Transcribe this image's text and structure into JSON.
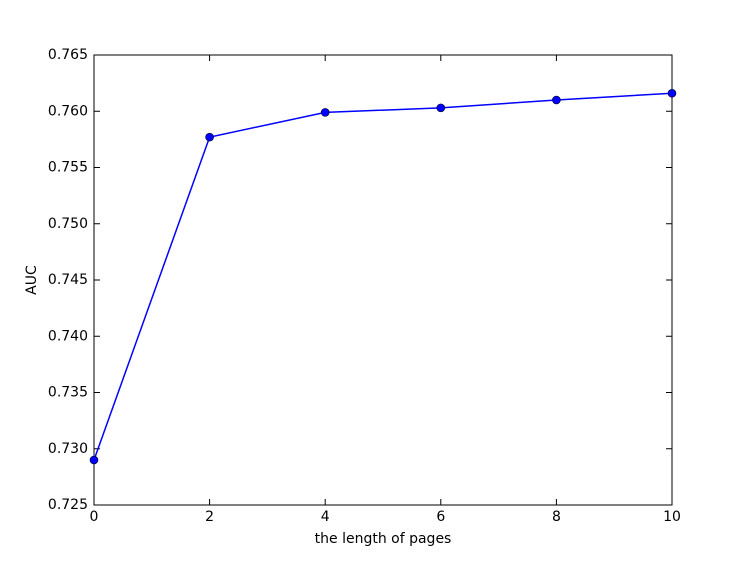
{
  "chart_data": {
    "type": "line",
    "x_label": "the length of pages",
    "y_label": "AUC",
    "x": [
      0,
      2,
      4,
      6,
      8,
      10
    ],
    "series": [
      {
        "color": "#0000ff",
        "values": [
          0.729,
          0.7577,
          0.7599,
          0.7603,
          0.761,
          0.7616
        ]
      }
    ],
    "xlim": [
      0,
      10
    ],
    "xticks": [
      0,
      2,
      4,
      6,
      8,
      10
    ],
    "ylim": [
      0.725,
      0.765
    ],
    "yticks": [
      0.725,
      {
        "value": 0.73,
        "label": "0.730"
      },
      0.735,
      {
        "value": 0.74,
        "label": "0.740"
      },
      0.745,
      {
        "value": 0.75,
        "label": "0.750"
      },
      0.755,
      {
        "value": 0.76,
        "label": "0.760"
      },
      0.765
    ],
    "grid": false,
    "markers": true
  }
}
